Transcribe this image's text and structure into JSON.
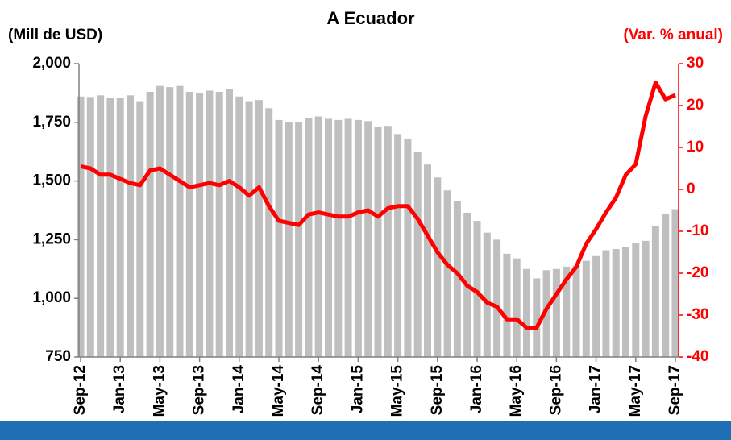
{
  "chart_data": {
    "type": "combo",
    "title": "A Ecuador",
    "y_label": "(Mill de USD)",
    "y2_label": "(Var. % anual)",
    "categories": [
      "Sep-12",
      null,
      null,
      null,
      "Jan-13",
      null,
      null,
      null,
      "May-13",
      null,
      null,
      null,
      "Sep-13",
      null,
      null,
      null,
      "Jan-14",
      null,
      null,
      null,
      "May-14",
      null,
      null,
      null,
      "Sep-14",
      null,
      null,
      null,
      "Jan-15",
      null,
      null,
      null,
      "May-15",
      null,
      null,
      null,
      "Sep-15",
      null,
      null,
      null,
      "Jan-16",
      null,
      null,
      null,
      "May-16",
      null,
      null,
      null,
      "Sep-16",
      null,
      null,
      null,
      "Jan-17",
      null,
      null,
      null,
      "May-17",
      null,
      null,
      null,
      "Sep-17"
    ],
    "series": [
      {
        "type": "bar",
        "color": "#bfbfbf",
        "values": [
          1860,
          1858,
          1865,
          1855,
          1855,
          1865,
          1840,
          1880,
          1905,
          1900,
          1905,
          1880,
          1875,
          1885,
          1880,
          1890,
          1860,
          1840,
          1845,
          1810,
          1760,
          1750,
          1750,
          1770,
          1775,
          1765,
          1760,
          1765,
          1760,
          1755,
          1730,
          1735,
          1700,
          1680,
          1625,
          1570,
          1515,
          1460,
          1415,
          1365,
          1330,
          1280,
          1250,
          1190,
          1170,
          1125,
          1085,
          1120,
          1125,
          1135,
          1140,
          1160,
          1180,
          1205,
          1210,
          1220,
          1235,
          1245,
          1310,
          1360,
          1380
        ]
      },
      {
        "type": "line",
        "axis": "y2",
        "color": "#ff0000",
        "values": [
          5.5,
          5,
          3.5,
          3.5,
          2.5,
          1.5,
          1,
          4.5,
          5,
          3.5,
          2,
          0.5,
          1,
          1.5,
          1,
          2,
          0.5,
          -1.5,
          0.5,
          -4,
          -7.5,
          -8,
          -8.5,
          -6,
          -5.5,
          -6,
          -6.5,
          -6.5,
          -5.5,
          -5,
          -6.5,
          -4.5,
          -4,
          -4,
          -7,
          -11,
          -15,
          -18,
          -20,
          -23,
          -24.5,
          -27,
          -28,
          -31,
          -31,
          -33,
          -33,
          -28.5,
          -25,
          -21.5,
          -18.5,
          -13,
          -9.5,
          -5.5,
          -2,
          3.5,
          6,
          17.5,
          25.5,
          21.5,
          22.5
        ]
      }
    ],
    "ylim": [
      750,
      2000
    ],
    "yticks": [
      750,
      {
        "value": 1000,
        "label": "1,000"
      },
      {
        "value": 1250,
        "label": "1,250"
      },
      {
        "value": 1500,
        "label": "1,500"
      },
      {
        "value": 1750,
        "label": "1,750"
      },
      {
        "value": 2000,
        "label": "2,000"
      }
    ],
    "y2lim": [
      -40,
      30
    ],
    "y2ticks": [
      -40,
      -30,
      -20,
      -10,
      0,
      10,
      20,
      30
    ],
    "y2_color": "#ff0000"
  }
}
